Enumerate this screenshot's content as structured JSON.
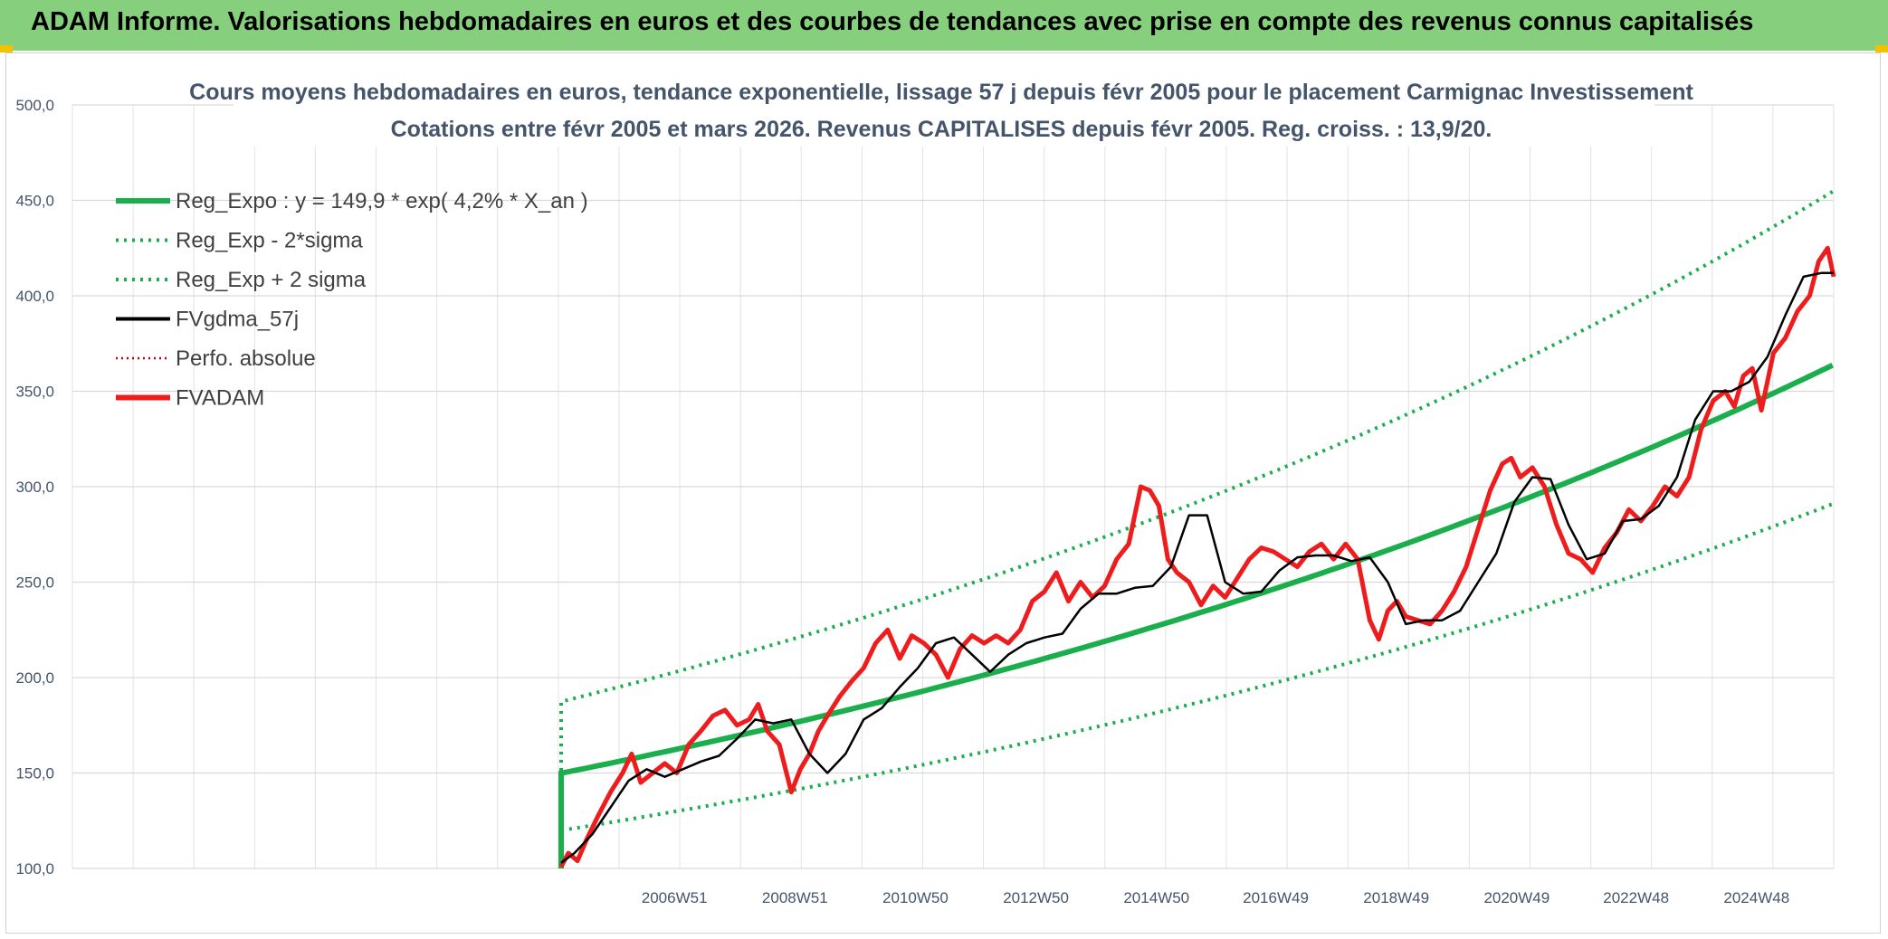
{
  "header": {
    "banner_title": "ADAM Informe. Valorisations hebdomadaires en euros et des courbes de tendances avec prise en compte des revenus connus capitalisés"
  },
  "chart_data": {
    "type": "line",
    "title": "Cours moyens hebdomadaires en euros, tendance exponentielle, lissage 57 j depuis févr 2005 pour le placement Carmignac Investissement",
    "subtitle": "Cotations entre févr 2005 et mars 2026. Revenus CAPITALISES depuis févr 2005. Reg. croiss. : 13,9/20.",
    "xlabel": "",
    "ylabel": "",
    "x_range": [
      2005.08,
      2026.2
    ],
    "ylim": [
      100,
      500
    ],
    "y_ticks": [
      "100,0",
      "150,0",
      "200,0",
      "250,0",
      "300,0",
      "350,0",
      "400,0",
      "450,0",
      "500,0"
    ],
    "x_ticks": [
      {
        "label": "2006W51",
        "x": 2006.96
      },
      {
        "label": "2008W51",
        "x": 2008.96
      },
      {
        "label": "2010W50",
        "x": 2010.96
      },
      {
        "label": "2012W50",
        "x": 2012.96
      },
      {
        "label": "2014W50",
        "x": 2014.96
      },
      {
        "label": "2016W49",
        "x": 2016.94
      },
      {
        "label": "2018W49",
        "x": 2018.94
      },
      {
        "label": "2020W49",
        "x": 2020.94
      },
      {
        "label": "2022W48",
        "x": 2022.92
      },
      {
        "label": "2024W48",
        "x": 2024.92
      }
    ],
    "grid": true,
    "legend_position": "top-left",
    "regression": {
      "coefficient": 149.9,
      "growth_rate": 0.042,
      "sigma_low_factor": 0.8,
      "sigma_high_factor": 1.25
    },
    "series": [
      {
        "name": "Reg_Expo : y = 149,9 * exp( 4,2% *  X_an )",
        "style": "thick-solid",
        "color": "#1aae4c"
      },
      {
        "name": "Reg_Exp - 2*sigma",
        "style": "dotted",
        "color": "#1aae4c"
      },
      {
        "name": "Reg_Exp + 2 sigma",
        "style": "dotted",
        "color": "#1aae4c"
      },
      {
        "name": "FVgdma_57j",
        "style": "solid",
        "color": "#000000",
        "x": [
          2005.08,
          2005.3,
          2005.6,
          2005.9,
          2006.2,
          2006.5,
          2006.8,
          2007.1,
          2007.4,
          2007.7,
          2008.0,
          2008.3,
          2008.6,
          2008.9,
          2009.2,
          2009.5,
          2009.8,
          2010.1,
          2010.4,
          2010.7,
          2011.0,
          2011.3,
          2011.6,
          2011.9,
          2012.2,
          2012.5,
          2012.8,
          2013.1,
          2013.4,
          2013.7,
          2014.0,
          2014.3,
          2014.6,
          2014.9,
          2015.2,
          2015.5,
          2015.8,
          2016.1,
          2016.4,
          2016.7,
          2017.0,
          2017.3,
          2017.6,
          2017.9,
          2018.2,
          2018.5,
          2018.8,
          2019.1,
          2019.4,
          2019.7,
          2020.0,
          2020.3,
          2020.6,
          2020.9,
          2021.2,
          2021.5,
          2021.8,
          2022.1,
          2022.4,
          2022.7,
          2023.0,
          2023.3,
          2023.6,
          2023.9,
          2024.2,
          2024.5,
          2024.8,
          2025.1,
          2025.4,
          2025.7,
          2026.0,
          2026.2
        ],
        "y": [
          103,
          108,
          118,
          132,
          146,
          152,
          148,
          152,
          156,
          159,
          168,
          178,
          176,
          178,
          160,
          150,
          160,
          178,
          184,
          195,
          205,
          218,
          221,
          212,
          203,
          212,
          218,
          221,
          223,
          236,
          244,
          244,
          247,
          248,
          258,
          285,
          285,
          250,
          244,
          245,
          256,
          263,
          264,
          264,
          261,
          263,
          250,
          228,
          230,
          230,
          235,
          250,
          265,
          292,
          305,
          304,
          280,
          262,
          265,
          282,
          283,
          290,
          305,
          335,
          350,
          350,
          355,
          368,
          390,
          410,
          412,
          412
        ]
      },
      {
        "name": "Perfo. absolue",
        "style": "dotted",
        "color": "#c00000"
      },
      {
        "name": "FVADAM",
        "style": "thick-solid",
        "color": "#ee1c1c",
        "x": [
          2005.08,
          2005.2,
          2005.35,
          2005.5,
          2005.7,
          2005.9,
          2006.1,
          2006.25,
          2006.4,
          2006.6,
          2006.8,
          2007.0,
          2007.2,
          2007.4,
          2007.6,
          2007.8,
          2008.0,
          2008.2,
          2008.35,
          2008.5,
          2008.7,
          2008.9,
          2009.05,
          2009.2,
          2009.35,
          2009.5,
          2009.7,
          2009.9,
          2010.1,
          2010.3,
          2010.5,
          2010.7,
          2010.9,
          2011.1,
          2011.3,
          2011.5,
          2011.7,
          2011.9,
          2012.1,
          2012.3,
          2012.5,
          2012.7,
          2012.9,
          2013.1,
          2013.3,
          2013.5,
          2013.7,
          2013.9,
          2014.1,
          2014.3,
          2014.5,
          2014.7,
          2014.85,
          2015.0,
          2015.15,
          2015.3,
          2015.5,
          2015.7,
          2015.9,
          2016.1,
          2016.3,
          2016.5,
          2016.7,
          2016.9,
          2017.1,
          2017.3,
          2017.5,
          2017.7,
          2017.9,
          2018.1,
          2018.3,
          2018.5,
          2018.65,
          2018.8,
          2018.95,
          2019.1,
          2019.3,
          2019.5,
          2019.7,
          2019.9,
          2020.1,
          2020.3,
          2020.5,
          2020.7,
          2020.85,
          2021.0,
          2021.2,
          2021.4,
          2021.6,
          2021.8,
          2022.0,
          2022.2,
          2022.4,
          2022.6,
          2022.8,
          2023.0,
          2023.2,
          2023.4,
          2023.6,
          2023.8,
          2024.0,
          2024.2,
          2024.4,
          2024.55,
          2024.7,
          2024.85,
          2025.0,
          2025.2,
          2025.4,
          2025.6,
          2025.8,
          2025.95,
          2026.1,
          2026.2
        ],
        "y": [
          101,
          108,
          104,
          115,
          128,
          140,
          150,
          160,
          145,
          150,
          155,
          150,
          165,
          172,
          180,
          183,
          175,
          178,
          186,
          172,
          165,
          140,
          152,
          160,
          172,
          180,
          190,
          198,
          205,
          218,
          225,
          210,
          222,
          218,
          212,
          200,
          215,
          222,
          218,
          222,
          218,
          225,
          240,
          245,
          255,
          240,
          250,
          242,
          248,
          262,
          270,
          300,
          298,
          290,
          262,
          255,
          250,
          238,
          248,
          242,
          252,
          262,
          268,
          266,
          262,
          258,
          266,
          270,
          262,
          270,
          262,
          230,
          220,
          235,
          240,
          232,
          230,
          228,
          235,
          245,
          258,
          278,
          298,
          312,
          315,
          305,
          310,
          300,
          280,
          265,
          262,
          255,
          268,
          276,
          288,
          282,
          290,
          300,
          295,
          305,
          330,
          345,
          350,
          342,
          358,
          362,
          340,
          370,
          378,
          392,
          400,
          418,
          425,
          410
        ]
      }
    ]
  }
}
